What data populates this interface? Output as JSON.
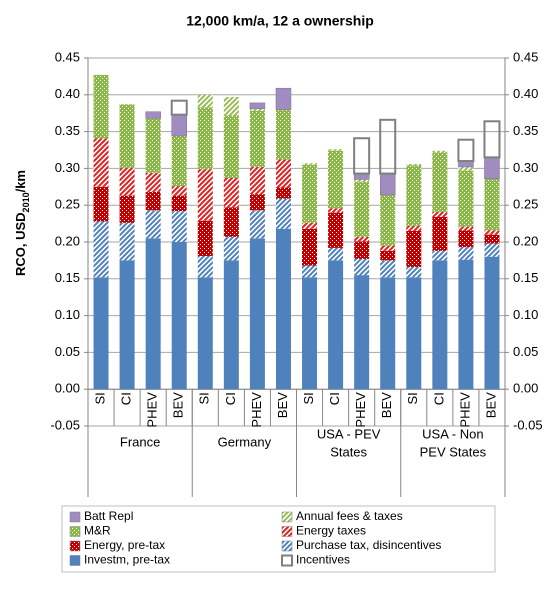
{
  "chart_data": {
    "type": "stacked_bar",
    "title": "12,000 km/a, 12 a ownership",
    "y_label": [
      "RCO, USD",
      "2010",
      "/km"
    ],
    "categories": [
      "SI",
      "CI",
      "PHEV",
      "BEV",
      "SI",
      "CI",
      "PHEV",
      "BEV",
      "SI",
      "CI",
      "PHEV",
      "BEV",
      "SI",
      "CI",
      "PHEV",
      "BEV"
    ],
    "groups": [
      {
        "name": [
          "France"
        ],
        "span": 4
      },
      {
        "name": [
          "Germany"
        ],
        "span": 4
      },
      {
        "name": [
          "USA - PEV",
          "States"
        ],
        "span": 4
      },
      {
        "name": [
          "USA - Non",
          "PEV States"
        ],
        "span": 4
      }
    ],
    "ylim": [
      -0.05,
      0.45
    ],
    "yticks": [
      {
        "value": -0.05,
        "label": "-0.05"
      },
      {
        "value": 0,
        "label": "0.00"
      },
      {
        "value": 0.05,
        "label": "0.05"
      },
      {
        "value": 0.1,
        "label": "0.10"
      },
      {
        "value": 0.15,
        "label": "0.15"
      },
      {
        "value": 0.2,
        "label": "0.20"
      },
      {
        "value": 0.25,
        "label": "0.25"
      },
      {
        "value": 0.3,
        "label": "0.30"
      },
      {
        "value": 0.35,
        "label": "0.35"
      },
      {
        "value": 0.4,
        "label": "0.40"
      },
      {
        "value": 0.45,
        "label": "0.45"
      }
    ],
    "grid": true,
    "series": [
      {
        "name": "Investm, pre-tax",
        "color": "#4f81bd",
        "pattern": "solid",
        "values": [
          0.152,
          0.175,
          0.205,
          0.2,
          0.152,
          0.175,
          0.205,
          0.218,
          0.152,
          0.175,
          0.155,
          0.152,
          0.152,
          0.175,
          0.176,
          0.18
        ]
      },
      {
        "name": "Purchase tax, disincentives",
        "color": "#4f81bd",
        "pattern": "hatch",
        "values": [
          0.076,
          0.051,
          0.038,
          0.042,
          0.029,
          0.032,
          0.038,
          0.041,
          0.016,
          0.017,
          0.022,
          0.023,
          0.014,
          0.013,
          0.017,
          0.018
        ]
      },
      {
        "name": "Energy, pre-tax",
        "color": "#c00000",
        "pattern": "dots",
        "values": [
          0.047,
          0.037,
          0.025,
          0.021,
          0.048,
          0.04,
          0.022,
          0.015,
          0.05,
          0.048,
          0.024,
          0.013,
          0.049,
          0.046,
          0.023,
          0.012
        ]
      },
      {
        "name": "Energy taxes",
        "color": "#e0201e",
        "pattern": "hatch",
        "values": [
          0.066,
          0.038,
          0.026,
          0.013,
          0.07,
          0.04,
          0.037,
          0.038,
          0.008,
          0.006,
          0.006,
          0.007,
          0.007,
          0.007,
          0.005,
          0.006
        ]
      },
      {
        "name": "M&R",
        "color": "#8cb84a",
        "pattern": "dots",
        "values": [
          0.086,
          0.086,
          0.074,
          0.068,
          0.084,
          0.085,
          0.076,
          0.068,
          0.079,
          0.078,
          0.075,
          0.069,
          0.082,
          0.081,
          0.076,
          0.07
        ]
      },
      {
        "name": "Annual fees & taxes",
        "color": "#9bbb59",
        "pattern": "hatch",
        "values": [
          0,
          0,
          0,
          0,
          0.017,
          0.025,
          0.003,
          0,
          0.002,
          0.002,
          0.003,
          0,
          0.002,
          0.002,
          0.005,
          0
        ]
      },
      {
        "name": "Batt Repl",
        "color": "#a18cc0",
        "pattern": "solid",
        "values": [
          0,
          0,
          0.009,
          0.029,
          0,
          0,
          0.008,
          0.029,
          0,
          0,
          0.008,
          0.029,
          0,
          0,
          0.008,
          0.029
        ]
      },
      {
        "name": "Incentives",
        "color": "#7f7f7f",
        "pattern": "outline",
        "values": [
          0,
          0,
          0,
          0.019,
          0,
          0,
          0,
          0,
          0,
          0,
          0.048,
          0.073,
          0,
          0,
          0.029,
          0.049
        ]
      }
    ]
  }
}
